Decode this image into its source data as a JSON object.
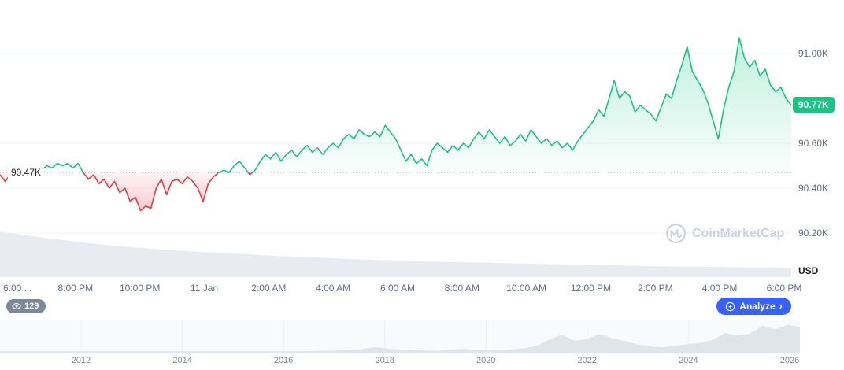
{
  "watermark": {
    "text": "CoinMarketCap"
  },
  "watchers_badge": {
    "count": "129"
  },
  "analyze_button": {
    "label": "Analyze",
    "chevron": "›"
  },
  "colors": {
    "up": "#16c784",
    "down": "#ea3943",
    "accent_blue": "#3861fb",
    "axis_text": "#616e85",
    "watermark": "#cbd3e1"
  },
  "chart_data": {
    "type": "line",
    "title": "",
    "unit": "USD",
    "baseline": {
      "label": "90.47K",
      "value": 90.47
    },
    "current": {
      "label": "90.77K",
      "value": 90.77
    },
    "y_axis": {
      "unit_label": "USD",
      "ticks": [
        {
          "label": "91.00K",
          "value": 91.0
        },
        {
          "label": "90.60K",
          "value": 90.6
        },
        {
          "label": "90.40K",
          "value": 90.4
        },
        {
          "label": "90.20K",
          "value": 90.2
        }
      ]
    },
    "x_axis": {
      "tick_labels": [
        "6:00 ...",
        "8:00 PM",
        "10:00 PM",
        "11 Jan",
        "2:00 AM",
        "4:00 AM",
        "6:00 AM",
        "8:00 AM",
        "10:00 AM",
        "12:00 PM",
        "2:00 PM",
        "4:00 PM",
        "6:00 PM"
      ]
    },
    "series": [
      {
        "name": "price_thousand_usd",
        "values": [
          90.46,
          90.43,
          90.46,
          90.47,
          90.46,
          90.48,
          90.47,
          90.49,
          90.48,
          90.5,
          90.49,
          90.51,
          90.5,
          90.51,
          90.49,
          90.51,
          90.47,
          90.44,
          90.46,
          90.42,
          90.44,
          90.4,
          90.43,
          90.38,
          90.4,
          90.34,
          90.36,
          90.3,
          90.32,
          90.31,
          90.4,
          90.44,
          90.37,
          90.43,
          90.44,
          90.42,
          90.45,
          90.43,
          90.4,
          90.34,
          90.42,
          90.45,
          90.47,
          90.48,
          90.47,
          90.5,
          90.52,
          90.49,
          90.46,
          90.48,
          90.52,
          90.55,
          90.53,
          90.56,
          90.52,
          90.55,
          90.57,
          90.54,
          90.57,
          90.59,
          90.56,
          90.58,
          90.55,
          90.58,
          90.6,
          90.58,
          90.62,
          90.64,
          90.62,
          90.66,
          90.64,
          90.63,
          90.65,
          90.63,
          90.68,
          90.65,
          90.62,
          90.57,
          90.52,
          90.55,
          90.51,
          90.53,
          90.5,
          90.57,
          90.6,
          90.58,
          90.56,
          90.59,
          90.57,
          90.6,
          90.58,
          90.62,
          90.65,
          90.62,
          90.66,
          90.63,
          90.6,
          90.63,
          90.59,
          90.61,
          90.64,
          90.61,
          90.66,
          90.63,
          90.6,
          90.62,
          90.59,
          90.61,
          90.58,
          90.6,
          90.57,
          90.61,
          90.64,
          90.67,
          90.7,
          90.75,
          90.72,
          90.8,
          90.88,
          90.8,
          90.83,
          90.81,
          90.74,
          90.77,
          90.75,
          90.73,
          90.7,
          90.76,
          90.82,
          90.8,
          90.88,
          90.95,
          91.03,
          90.92,
          90.88,
          90.84,
          90.78,
          90.7,
          90.62,
          90.75,
          90.85,
          90.92,
          91.07,
          90.98,
          90.94,
          90.97,
          90.9,
          90.93,
          90.86,
          90.83,
          90.85,
          90.8,
          90.77
        ]
      }
    ],
    "volume_norm": [
      1.0,
      0.93,
      0.86,
      0.8,
      0.74,
      0.69,
      0.65,
      0.61,
      0.58,
      0.55,
      0.52,
      0.5,
      0.47,
      0.45,
      0.43,
      0.41,
      0.39,
      0.37,
      0.36,
      0.34,
      0.33,
      0.32,
      0.31,
      0.3,
      0.29,
      0.28,
      0.27,
      0.26,
      0.25,
      0.24,
      0.23,
      0.23,
      0.22,
      0.21,
      0.21,
      0.2
    ],
    "range_selector": {
      "type": "area",
      "year_labels": [
        "2012",
        "2014",
        "2016",
        "2018",
        "2020",
        "2022",
        "2024",
        "2026"
      ],
      "values_norm": [
        0.02,
        0.02,
        0.02,
        0.02,
        0.02,
        0.02,
        0.02,
        0.02,
        0.02,
        0.02,
        0.02,
        0.02,
        0.02,
        0.02,
        0.02,
        0.02,
        0.02,
        0.02,
        0.02,
        0.02,
        0.02,
        0.02,
        0.02,
        0.02,
        0.02,
        0.03,
        0.04,
        0.05,
        0.07,
        0.1,
        0.17,
        0.11,
        0.08,
        0.06,
        0.05,
        0.04,
        0.08,
        0.11,
        0.08,
        0.07,
        0.06,
        0.09,
        0.13,
        0.22,
        0.45,
        0.6,
        0.38,
        0.46,
        0.64,
        0.48,
        0.38,
        0.27,
        0.19,
        0.16,
        0.22,
        0.27,
        0.31,
        0.42,
        0.66,
        0.58,
        0.64,
        0.92,
        0.8,
        0.95,
        0.88
      ]
    }
  }
}
